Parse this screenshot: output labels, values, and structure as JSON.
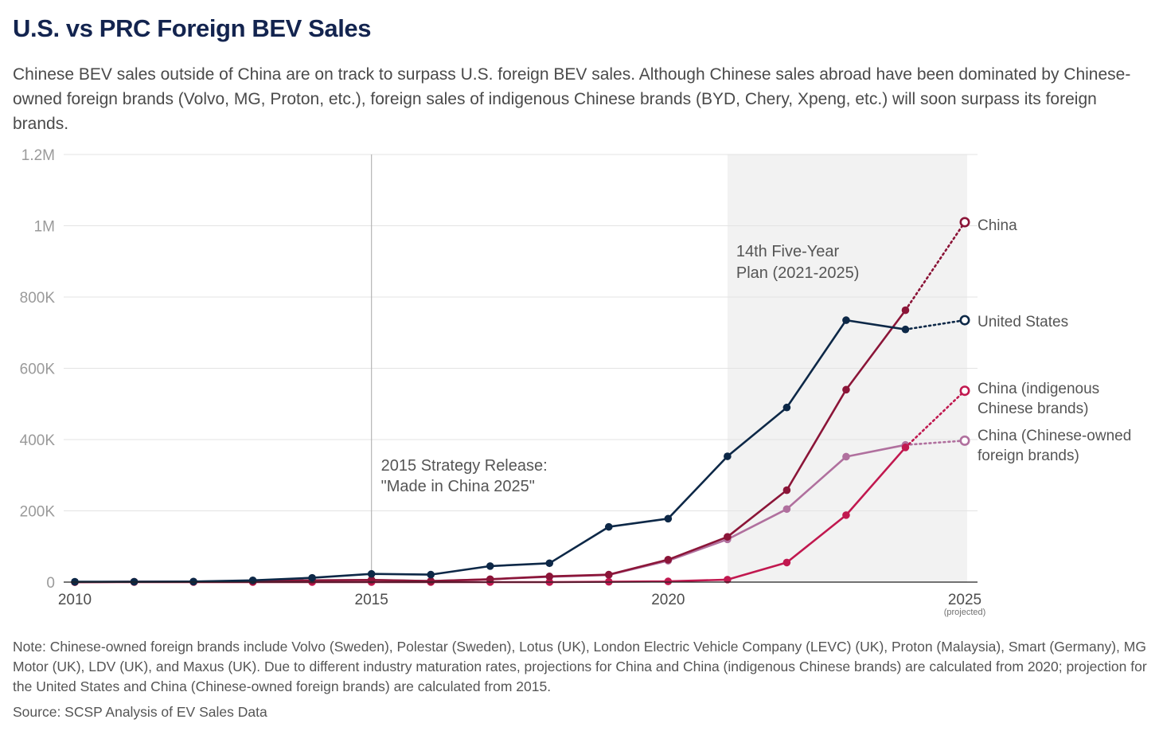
{
  "chart_data": {
    "type": "line",
    "title": "U.S. vs PRC Foreign BEV Sales",
    "subtitle": "Chinese BEV sales outside of China are on track to surpass U.S. foreign BEV sales. Although Chinese sales abroad have been dominated by Chinese-owned foreign brands (Volvo, MG, Proton, etc.), foreign sales of indigenous Chinese brands (BYD, Chery, Xpeng, etc.) will soon surpass its foreign brands.",
    "xlim": [
      2010,
      2025
    ],
    "ylim": [
      0,
      1200000
    ],
    "x_ticks": [
      {
        "value": 2010,
        "label": "2010"
      },
      {
        "value": 2015,
        "label": "2015"
      },
      {
        "value": 2020,
        "label": "2020"
      },
      {
        "value": 2025,
        "label": "2025"
      }
    ],
    "x_tick_note": "(projected)",
    "y_ticks": [
      {
        "value": 0,
        "label": "0"
      },
      {
        "value": 200000,
        "label": "200K"
      },
      {
        "value": 400000,
        "label": "400K"
      },
      {
        "value": 600000,
        "label": "600K"
      },
      {
        "value": 800000,
        "label": "800K"
      },
      {
        "value": 1000000,
        "label": "1M"
      },
      {
        "value": 1200000,
        "label": "1.2M"
      }
    ],
    "grid": true,
    "series": [
      {
        "key": "china-foreign",
        "name": "China (Chinese-owned foreign brands)",
        "label_lines": [
          "China (Chinese-owned",
          "foreign brands)"
        ],
        "color": "#b0709e",
        "x": [
          2010,
          2011,
          2012,
          2013,
          2014,
          2015,
          2016,
          2017,
          2018,
          2019,
          2020,
          2021,
          2022,
          2023,
          2024
        ],
        "values": [
          0,
          1000,
          1000,
          2000,
          5000,
          6000,
          3000,
          8000,
          15000,
          20000,
          60000,
          120000,
          205000,
          352000,
          385000
        ],
        "projected": {
          "x": 2025,
          "value": 397000
        }
      },
      {
        "key": "china-indigenous",
        "name": "China (indigenous Chinese brands)",
        "label_lines": [
          "China (indigenous",
          "Chinese brands)"
        ],
        "color": "#c1184f",
        "x": [
          2010,
          2011,
          2012,
          2013,
          2014,
          2015,
          2016,
          2017,
          2018,
          2019,
          2020,
          2021,
          2022,
          2023,
          2024
        ],
        "values": [
          0,
          0,
          0,
          0,
          0,
          0,
          0,
          0,
          0,
          1000,
          2000,
          7000,
          55000,
          188000,
          378000
        ],
        "projected": {
          "x": 2025,
          "value": 537000
        }
      },
      {
        "key": "china",
        "name": "China",
        "label_lines": [
          "China"
        ],
        "color": "#8b1538",
        "x": [
          2010,
          2011,
          2012,
          2013,
          2014,
          2015,
          2016,
          2017,
          2018,
          2019,
          2020,
          2021,
          2022,
          2023,
          2024
        ],
        "values": [
          0,
          1000,
          1000,
          2000,
          5000,
          6000,
          3000,
          8000,
          16000,
          21000,
          63000,
          127000,
          258000,
          540000,
          763000
        ],
        "projected": {
          "x": 2025,
          "value": 1010000
        }
      },
      {
        "key": "us",
        "name": "United States",
        "label_lines": [
          "United States"
        ],
        "color": "#0d2847",
        "x": [
          2010,
          2011,
          2012,
          2013,
          2014,
          2015,
          2016,
          2017,
          2018,
          2019,
          2020,
          2021,
          2022,
          2023,
          2024
        ],
        "values": [
          1000,
          1000,
          1500,
          5000,
          12000,
          23000,
          21000,
          45000,
          53000,
          155000,
          178000,
          353000,
          490000,
          735000,
          709000
        ],
        "projected": {
          "x": 2025,
          "value": 735000
        }
      }
    ],
    "annotations": [
      {
        "key": "strategy",
        "x": 2015,
        "lines": [
          "2015 Strategy Release:",
          "\"Made in China 2025\""
        ]
      },
      {
        "key": "plan",
        "x_range": [
          2021,
          2025
        ],
        "lines": [
          "14th Five-Year",
          "Plan (2021-2025)"
        ]
      }
    ]
  },
  "footer": {
    "note": "Note: Chinese-owned foreign brands include Volvo (Sweden), Polestar (Sweden), Lotus (UK), London Electric Vehicle Company (LEVC) (UK), Proton (Malaysia), Smart (Germany), MG Motor (UK), LDV (UK), and Maxus (UK). Due to different industry maturation rates, projections for China and China (indigenous Chinese brands) are calculated from 2020; projection for the United States and China (Chinese-owned foreign brands) are calculated from 2015.",
    "source": "Source: SCSP Analysis of EV Sales Data"
  }
}
